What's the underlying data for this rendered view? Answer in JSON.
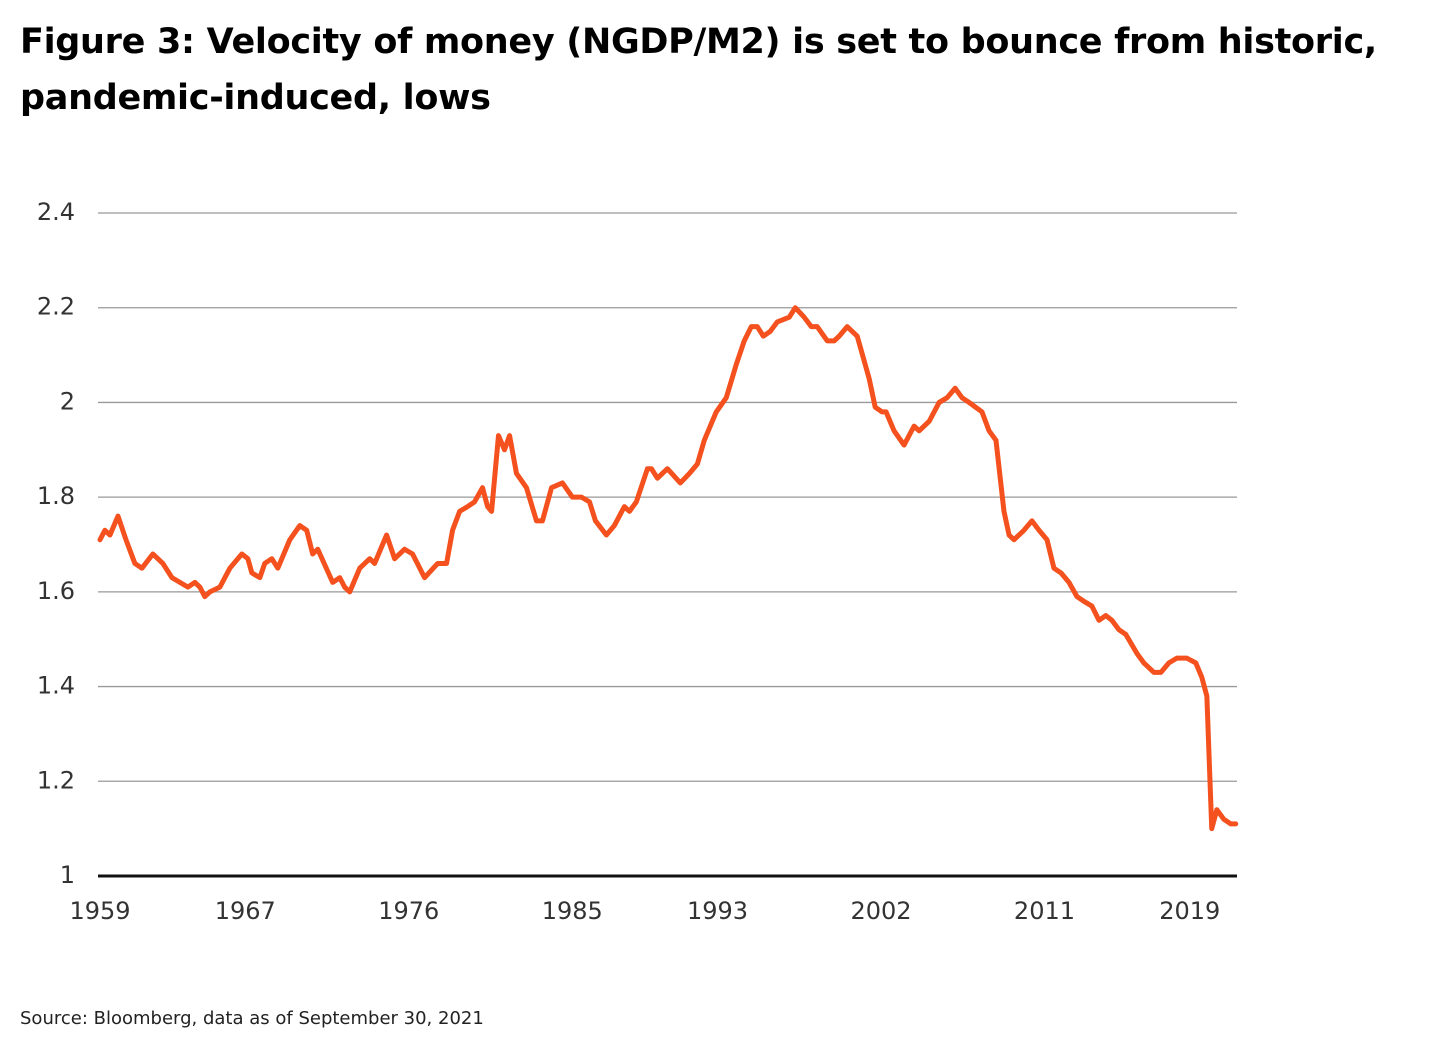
{
  "chart_data": {
    "type": "line",
    "title": "Figure 3: Velocity of money (NGDP/M2) is set to bounce from historic, pandemic-induced, lows",
    "source": "Source: Bloomberg, data as of September 30, 2021",
    "x": [
      1959,
      1959.27,
      1959.55,
      1959.99,
      1960.43,
      1960.92,
      1961.31,
      1961.91,
      1962.46,
      1962.96,
      1963.4,
      1963.84,
      1964.22,
      1964.5,
      1964.77,
      1965.05,
      1965.6,
      1966.15,
      1966.81,
      1967.14,
      1967.36,
      1967.8,
      1968.07,
      1968.46,
      1968.79,
      1969.45,
      1970,
      1970.38,
      1970.71,
      1970.99,
      1971.81,
      1972.2,
      1972.47,
      1972.75,
      1973.3,
      1973.85,
      1974.12,
      1974.78,
      1975.22,
      1975.77,
      1976.21,
      1976.87,
      1977.59,
      1978.08,
      1978.41,
      1978.8,
      1979.24,
      1979.62,
      1980.06,
      1980.34,
      1980.56,
      1980.94,
      1981.27,
      1981.55,
      1981.93,
      1982.48,
      1983.03,
      1983.36,
      1983.86,
      1984.46,
      1985.01,
      1985.51,
      1985.95,
      1986.28,
      1986.88,
      1987.32,
      1987.87,
      1988.15,
      1988.53,
      1989.14,
      1989.36,
      1989.69,
      1990.24,
      1990.95,
      1991.45,
      1991.89,
      1992.27,
      1992.93,
      1993.48,
      1994.03,
      1994.47,
      1994.86,
      1995.19,
      1995.52,
      1995.9,
      1996.29,
      1996.95,
      1997.28,
      1997.77,
      1998.16,
      1998.49,
      1999.04,
      1999.42,
      1999.7,
      2000.14,
      2000.69,
      2000.91,
      2001.35,
      2001.68,
      2002.06,
      2002.28,
      2002.72,
      2003.27,
      2003.82,
      2004.1,
      2004.65,
      2005.2,
      2005.64,
      2006.08,
      2006.46,
      2006.85,
      2007.56,
      2007.95,
      2008.33,
      2008.77,
      2009.05,
      2009.32,
      2009.87,
      2010.31,
      2010.7,
      2011.14,
      2011.52,
      2011.91,
      2012.35,
      2012.79,
      2013.17,
      2013.61,
      2014,
      2014.38,
      2014.71,
      2015.1,
      2015.48,
      2016.09,
      2016.47,
      2017.02,
      2017.41,
      2017.85,
      2018.29,
      2018.84,
      2019.33,
      2019.66,
      2019.94,
      2020.21,
      2020.49,
      2020.87,
      2021.26,
      2021.53
    ],
    "series": [
      {
        "name": "Velocity of money (NGDP/M2)",
        "color": "#f4511e",
        "values": [
          1.71,
          1.73,
          1.72,
          1.76,
          1.71,
          1.66,
          1.65,
          1.68,
          1.66,
          1.63,
          1.62,
          1.61,
          1.62,
          1.61,
          1.59,
          1.6,
          1.61,
          1.65,
          1.68,
          1.67,
          1.64,
          1.63,
          1.66,
          1.67,
          1.65,
          1.71,
          1.74,
          1.73,
          1.68,
          1.69,
          1.62,
          1.63,
          1.61,
          1.6,
          1.65,
          1.67,
          1.66,
          1.72,
          1.67,
          1.69,
          1.68,
          1.63,
          1.66,
          1.66,
          1.73,
          1.77,
          1.78,
          1.79,
          1.82,
          1.78,
          1.77,
          1.93,
          1.9,
          1.93,
          1.85,
          1.82,
          1.75,
          1.75,
          1.82,
          1.83,
          1.8,
          1.8,
          1.79,
          1.75,
          1.72,
          1.74,
          1.78,
          1.77,
          1.79,
          1.86,
          1.86,
          1.84,
          1.86,
          1.83,
          1.85,
          1.87,
          1.92,
          1.98,
          2.01,
          2.08,
          2.13,
          2.16,
          2.16,
          2.14,
          2.15,
          2.17,
          2.18,
          2.2,
          2.18,
          2.16,
          2.16,
          2.13,
          2.13,
          2.14,
          2.16,
          2.14,
          2.11,
          2.05,
          1.99,
          1.98,
          1.98,
          1.94,
          1.91,
          1.95,
          1.94,
          1.96,
          2,
          2.01,
          2.03,
          2.01,
          2,
          1.98,
          1.94,
          1.92,
          1.77,
          1.72,
          1.71,
          1.73,
          1.75,
          1.73,
          1.71,
          1.65,
          1.64,
          1.62,
          1.59,
          1.58,
          1.57,
          1.54,
          1.55,
          1.54,
          1.52,
          1.51,
          1.47,
          1.45,
          1.43,
          1.43,
          1.45,
          1.46,
          1.46,
          1.45,
          1.42,
          1.38,
          1.1,
          1.14,
          1.12,
          1.11,
          1.11
        ]
      }
    ],
    "xlim": [
      1959,
      2021.6
    ],
    "xticks": [
      1959,
      1967,
      1976,
      1985,
      1993,
      2002,
      2011,
      2019
    ],
    "ylim": [
      1,
      2.4
    ],
    "yticks": [
      1,
      1.2,
      1.4,
      1.6,
      1.8,
      2,
      2.2,
      2.4
    ],
    "grid": true
  }
}
